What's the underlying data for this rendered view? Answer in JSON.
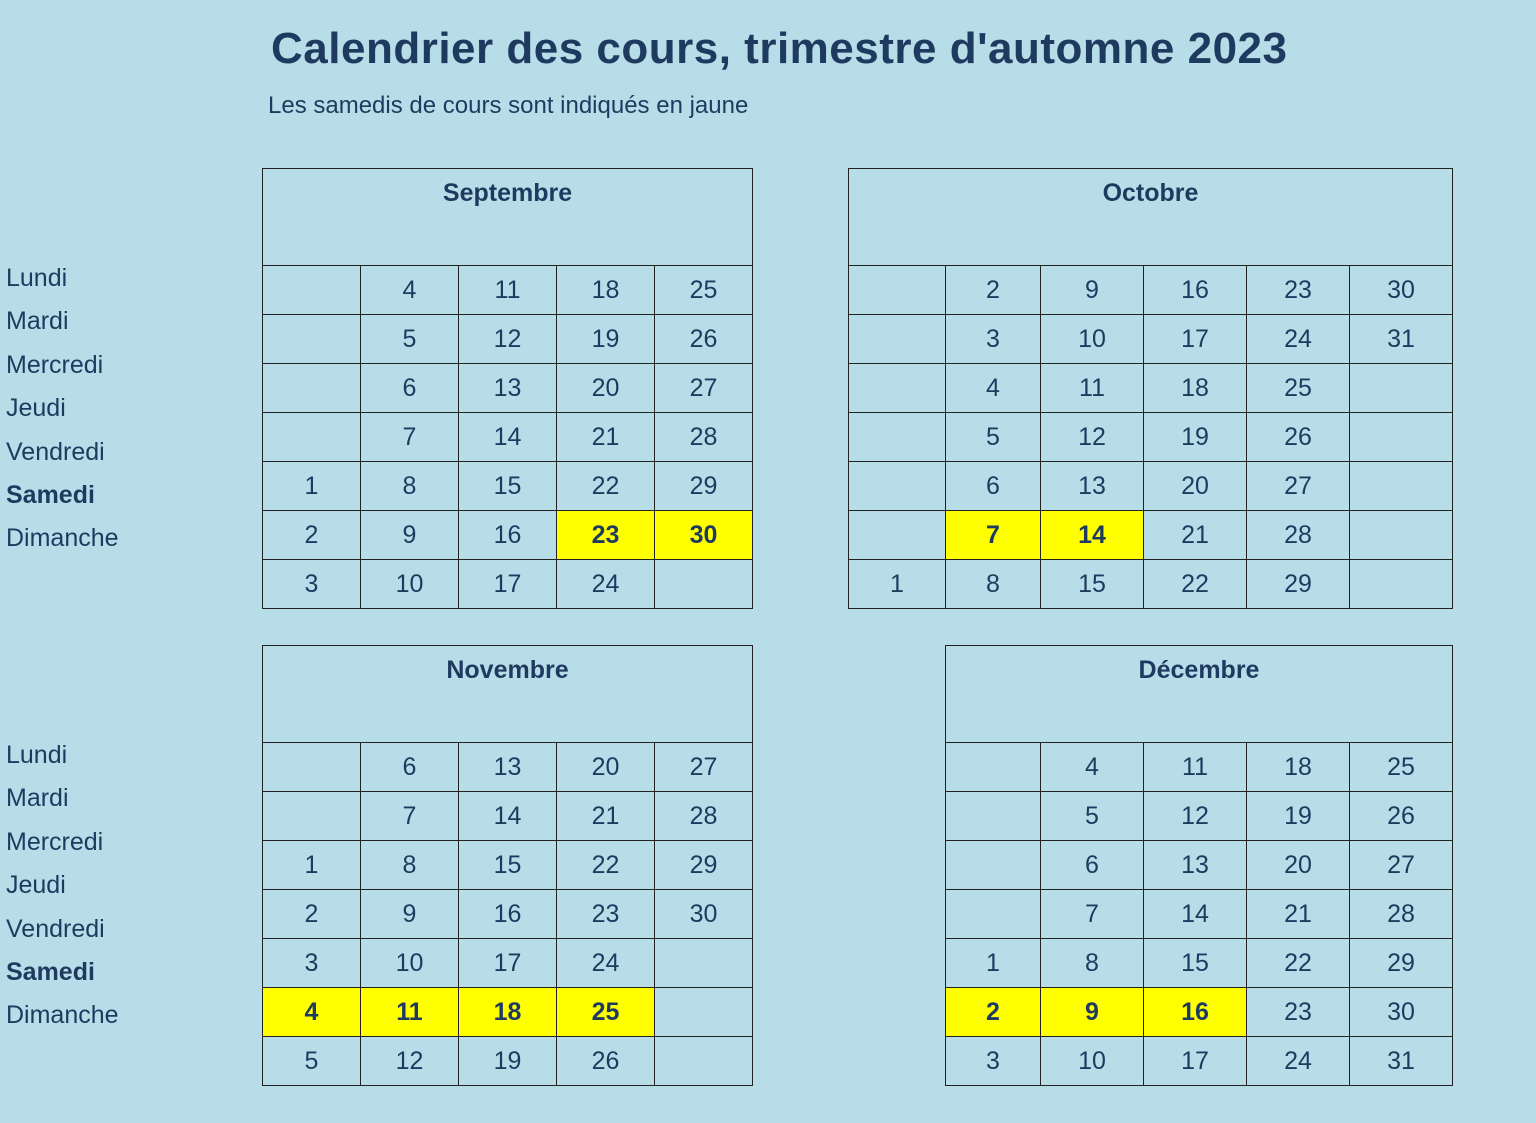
{
  "title": "Calendrier des cours, trimestre d'automne 2023",
  "subtitle": "Les samedis de cours sont indiqués en jaune",
  "highlight_color": "#ffff00",
  "days": [
    "Lundi",
    "Mardi",
    "Mercredi",
    "Jeudi",
    "Vendredi",
    "Samedi",
    "Dimanche"
  ],
  "months": [
    {
      "name": "Septembre",
      "weeks": [
        [
          "",
          "",
          "",
          "",
          "1",
          "2",
          "3"
        ],
        [
          "4",
          "5",
          "6",
          "7",
          "8",
          "9",
          "10"
        ],
        [
          "11",
          "12",
          "13",
          "14",
          "15",
          "16",
          "17"
        ],
        [
          "18",
          "19",
          "20",
          "21",
          "22",
          "23",
          "24"
        ],
        [
          "25",
          "26",
          "27",
          "28",
          "29",
          "30",
          ""
        ]
      ],
      "highlighted": [
        "23",
        "30"
      ]
    },
    {
      "name": "Octobre",
      "weeks": [
        [
          "",
          "",
          "",
          "",
          "",
          "",
          "1"
        ],
        [
          "2",
          "3",
          "4",
          "5",
          "6",
          "7",
          "8"
        ],
        [
          "9",
          "10",
          "11",
          "12",
          "13",
          "14",
          "15"
        ],
        [
          "16",
          "17",
          "18",
          "19",
          "20",
          "21",
          "22"
        ],
        [
          "23",
          "24",
          "25",
          "26",
          "27",
          "28",
          "29"
        ],
        [
          "30",
          "31",
          "",
          "",
          "",
          "",
          ""
        ]
      ],
      "highlighted": [
        "7",
        "14"
      ]
    },
    {
      "name": "Novembre",
      "weeks": [
        [
          "",
          "",
          "1",
          "2",
          "3",
          "4",
          "5"
        ],
        [
          "6",
          "7",
          "8",
          "9",
          "10",
          "11",
          "12"
        ],
        [
          "13",
          "14",
          "15",
          "16",
          "17",
          "18",
          "19"
        ],
        [
          "20",
          "21",
          "22",
          "23",
          "24",
          "25",
          "26"
        ],
        [
          "27",
          "28",
          "29",
          "30",
          "",
          "",
          ""
        ]
      ],
      "highlighted": [
        "4",
        "11",
        "18",
        "25"
      ]
    },
    {
      "name": "Décembre",
      "weeks": [
        [
          "",
          "",
          "",
          "",
          "1",
          "2",
          "3"
        ],
        [
          "4",
          "5",
          "6",
          "7",
          "8",
          "9",
          "10"
        ],
        [
          "11",
          "12",
          "13",
          "14",
          "15",
          "16",
          "17"
        ],
        [
          "18",
          "19",
          "20",
          "21",
          "22",
          "23",
          "24"
        ],
        [
          "25",
          "26",
          "27",
          "28",
          "29",
          "30",
          "31"
        ]
      ],
      "highlighted": [
        "2",
        "9",
        "16"
      ]
    }
  ]
}
